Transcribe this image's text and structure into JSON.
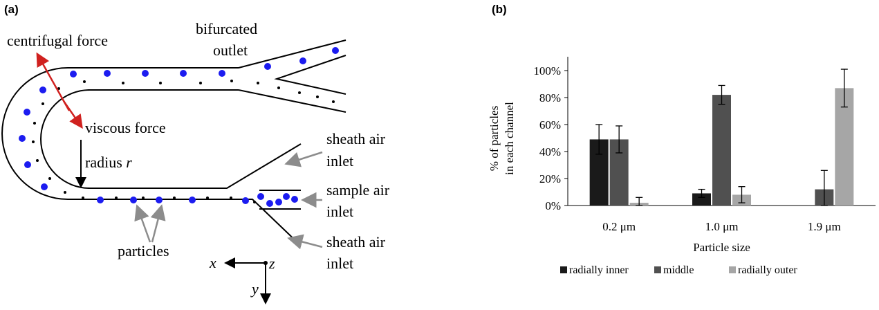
{
  "panel_a": {
    "label": "(a)",
    "annotations": {
      "centrifugal_force": "centrifugal force",
      "viscous_force": "viscous force",
      "radius_prefix": "radius ",
      "radius_symbol": "r",
      "bifurcated_line1": "bifurcated",
      "bifurcated_line2": "outlet",
      "sheath_top_line1": "sheath air",
      "sheath_top_line2": "inlet",
      "sample_line1": "sample air",
      "sample_line2": "inlet",
      "sheath_bottom_line1": "sheath air",
      "sheath_bottom_line2": "inlet",
      "particles": "particles",
      "axis_x": "x",
      "axis_y": "y",
      "axis_z": "z"
    },
    "colors": {
      "particle_large": "#1c1cf0",
      "particle_small": "#000000",
      "force_arrow": "#d0211f",
      "pointer": "#8c8c8c"
    }
  },
  "panel_b": {
    "label": "(b)"
  },
  "chart_data": {
    "type": "bar",
    "title": "",
    "xlabel": "Particle size",
    "ylabel_line1": "% of particles",
    "ylabel_line2": "in each channel",
    "categories": [
      "0.2 μm",
      "1.0 μm",
      "1.9 μm"
    ],
    "ylim": [
      0,
      100
    ],
    "yticks": [
      "0%",
      "20%",
      "40%",
      "60%",
      "80%",
      "100%"
    ],
    "series": [
      {
        "name": "radially inner",
        "color": "#1a1a1a",
        "values": [
          49,
          9,
          0
        ],
        "errors": [
          11,
          3,
          0
        ]
      },
      {
        "name": "middle",
        "color": "#505050",
        "values": [
          49,
          82,
          12
        ],
        "errors": [
          10,
          7,
          14
        ]
      },
      {
        "name": "radially outer",
        "color": "#a6a6a6",
        "values": [
          2,
          8,
          87
        ],
        "errors": [
          4,
          6,
          14
        ]
      }
    ],
    "legend_position": "bottom",
    "grid": false
  }
}
